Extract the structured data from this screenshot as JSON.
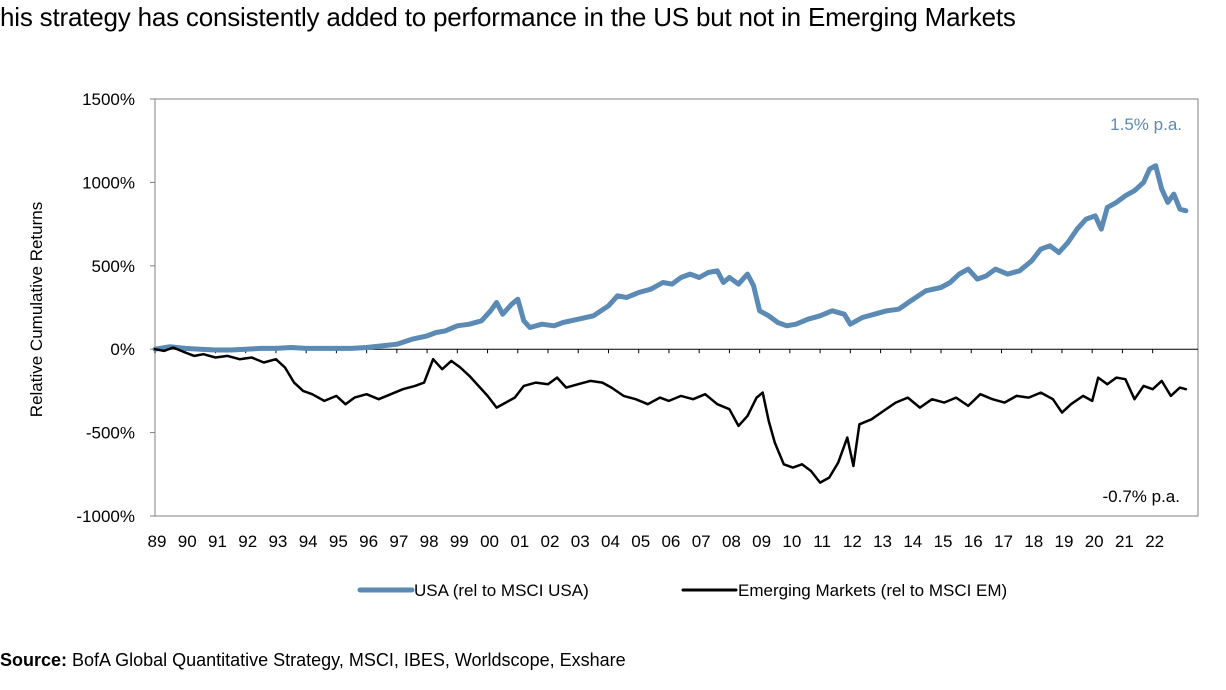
{
  "page": {
    "title": "his strategy has consistently added to performance in the US but not in Emerging Markets",
    "source_label": "Source:",
    "source_text": " BofA Global Quantitative Strategy, MSCI, IBES, Worldscope, Exshare"
  },
  "chart_data": {
    "type": "line",
    "ylabel": "Relative Cumulative Returns",
    "xlabel": "",
    "ylim": [
      -1000,
      1500
    ],
    "y_ticks": [
      1500,
      1000,
      500,
      0,
      -500,
      -1000
    ],
    "y_tick_labels": [
      "1500%",
      "1000%",
      "500%",
      "0%",
      "-500%",
      "-1000%"
    ],
    "x_tick_labels": [
      "89",
      "90",
      "91",
      "92",
      "93",
      "94",
      "95",
      "96",
      "97",
      "98",
      "99",
      "00",
      "01",
      "02",
      "03",
      "04",
      "05",
      "06",
      "07",
      "08",
      "09",
      "10",
      "11",
      "12",
      "13",
      "14",
      "15",
      "16",
      "17",
      "18",
      "19",
      "20",
      "21",
      "22"
    ],
    "x_range": [
      1989.0,
      2023.5
    ],
    "grid": false,
    "legend_position": "bottom",
    "annotations": [
      {
        "text": "1.5% p.a.",
        "series": "USA (rel to MSCI USA)"
      },
      {
        "text": "-0.7% p.a.",
        "series": "Emerging Markets (rel to MSCI EM)"
      }
    ],
    "series": [
      {
        "name": "USA (rel to MSCI USA)",
        "color": "#5b8ab5",
        "points": [
          [
            1989.0,
            0
          ],
          [
            1989.5,
            15
          ],
          [
            1990.0,
            5
          ],
          [
            1990.5,
            0
          ],
          [
            1991.0,
            -5
          ],
          [
            1991.5,
            -5
          ],
          [
            1992.0,
            0
          ],
          [
            1992.5,
            5
          ],
          [
            1993.0,
            5
          ],
          [
            1993.5,
            10
          ],
          [
            1994.0,
            5
          ],
          [
            1994.5,
            5
          ],
          [
            1995.0,
            5
          ],
          [
            1995.5,
            5
          ],
          [
            1996.0,
            10
          ],
          [
            1996.5,
            20
          ],
          [
            1997.0,
            30
          ],
          [
            1997.5,
            60
          ],
          [
            1998.0,
            80
          ],
          [
            1998.3,
            100
          ],
          [
            1998.6,
            110
          ],
          [
            1999.0,
            140
          ],
          [
            1999.4,
            150
          ],
          [
            1999.8,
            170
          ],
          [
            2000.1,
            230
          ],
          [
            2000.3,
            280
          ],
          [
            2000.5,
            210
          ],
          [
            2000.8,
            270
          ],
          [
            2001.0,
            300
          ],
          [
            2001.2,
            170
          ],
          [
            2001.4,
            130
          ],
          [
            2001.8,
            150
          ],
          [
            2002.2,
            140
          ],
          [
            2002.5,
            160
          ],
          [
            2003.0,
            180
          ],
          [
            2003.5,
            200
          ],
          [
            2004.0,
            260
          ],
          [
            2004.3,
            320
          ],
          [
            2004.6,
            310
          ],
          [
            2005.0,
            340
          ],
          [
            2005.4,
            360
          ],
          [
            2005.8,
            400
          ],
          [
            2006.1,
            390
          ],
          [
            2006.4,
            430
          ],
          [
            2006.7,
            450
          ],
          [
            2007.0,
            430
          ],
          [
            2007.3,
            460
          ],
          [
            2007.6,
            470
          ],
          [
            2007.8,
            400
          ],
          [
            2008.0,
            430
          ],
          [
            2008.3,
            390
          ],
          [
            2008.6,
            450
          ],
          [
            2008.8,
            380
          ],
          [
            2009.0,
            230
          ],
          [
            2009.3,
            200
          ],
          [
            2009.6,
            160
          ],
          [
            2009.9,
            140
          ],
          [
            2010.2,
            150
          ],
          [
            2010.6,
            180
          ],
          [
            2011.0,
            200
          ],
          [
            2011.4,
            230
          ],
          [
            2011.8,
            210
          ],
          [
            2012.0,
            150
          ],
          [
            2012.4,
            190
          ],
          [
            2012.8,
            210
          ],
          [
            2013.2,
            230
          ],
          [
            2013.6,
            240
          ],
          [
            2014.0,
            290
          ],
          [
            2014.5,
            350
          ],
          [
            2015.0,
            370
          ],
          [
            2015.3,
            400
          ],
          [
            2015.6,
            450
          ],
          [
            2015.9,
            480
          ],
          [
            2016.2,
            420
          ],
          [
            2016.5,
            440
          ],
          [
            2016.8,
            480
          ],
          [
            2017.2,
            450
          ],
          [
            2017.6,
            470
          ],
          [
            2018.0,
            530
          ],
          [
            2018.3,
            600
          ],
          [
            2018.6,
            620
          ],
          [
            2018.9,
            580
          ],
          [
            2019.2,
            640
          ],
          [
            2019.5,
            720
          ],
          [
            2019.8,
            780
          ],
          [
            2020.1,
            800
          ],
          [
            2020.3,
            720
          ],
          [
            2020.5,
            850
          ],
          [
            2020.8,
            880
          ],
          [
            2021.1,
            920
          ],
          [
            2021.4,
            950
          ],
          [
            2021.7,
            1000
          ],
          [
            2021.9,
            1080
          ],
          [
            2022.1,
            1100
          ],
          [
            2022.3,
            960
          ],
          [
            2022.5,
            880
          ],
          [
            2022.7,
            930
          ],
          [
            2022.9,
            840
          ],
          [
            2023.1,
            830
          ]
        ]
      },
      {
        "name": "Emerging Markets (rel to MSCI EM)",
        "color": "#000000",
        "points": [
          [
            1989.0,
            0
          ],
          [
            1989.3,
            -10
          ],
          [
            1989.6,
            10
          ],
          [
            1990.0,
            -20
          ],
          [
            1990.3,
            -40
          ],
          [
            1990.6,
            -30
          ],
          [
            1991.0,
            -50
          ],
          [
            1991.4,
            -40
          ],
          [
            1991.8,
            -60
          ],
          [
            1992.2,
            -50
          ],
          [
            1992.6,
            -80
          ],
          [
            1993.0,
            -60
          ],
          [
            1993.3,
            -110
          ],
          [
            1993.6,
            -200
          ],
          [
            1993.9,
            -250
          ],
          [
            1994.2,
            -270
          ],
          [
            1994.6,
            -310
          ],
          [
            1995.0,
            -280
          ],
          [
            1995.3,
            -330
          ],
          [
            1995.6,
            -290
          ],
          [
            1996.0,
            -270
          ],
          [
            1996.4,
            -300
          ],
          [
            1996.8,
            -270
          ],
          [
            1997.2,
            -240
          ],
          [
            1997.6,
            -220
          ],
          [
            1997.9,
            -200
          ],
          [
            1998.2,
            -60
          ],
          [
            1998.5,
            -120
          ],
          [
            1998.8,
            -70
          ],
          [
            1999.1,
            -110
          ],
          [
            1999.4,
            -160
          ],
          [
            1999.7,
            -220
          ],
          [
            2000.0,
            -280
          ],
          [
            2000.3,
            -350
          ],
          [
            2000.6,
            -320
          ],
          [
            2000.9,
            -290
          ],
          [
            2001.2,
            -220
          ],
          [
            2001.6,
            -200
          ],
          [
            2002.0,
            -210
          ],
          [
            2002.3,
            -170
          ],
          [
            2002.6,
            -230
          ],
          [
            2003.0,
            -210
          ],
          [
            2003.4,
            -190
          ],
          [
            2003.8,
            -200
          ],
          [
            2004.1,
            -230
          ],
          [
            2004.5,
            -280
          ],
          [
            2004.9,
            -300
          ],
          [
            2005.3,
            -330
          ],
          [
            2005.7,
            -290
          ],
          [
            2006.0,
            -310
          ],
          [
            2006.4,
            -280
          ],
          [
            2006.8,
            -300
          ],
          [
            2007.2,
            -270
          ],
          [
            2007.6,
            -330
          ],
          [
            2008.0,
            -360
          ],
          [
            2008.3,
            -460
          ],
          [
            2008.6,
            -400
          ],
          [
            2008.9,
            -290
          ],
          [
            2009.1,
            -260
          ],
          [
            2009.3,
            -430
          ],
          [
            2009.5,
            -560
          ],
          [
            2009.8,
            -690
          ],
          [
            2010.1,
            -710
          ],
          [
            2010.4,
            -690
          ],
          [
            2010.7,
            -730
          ],
          [
            2011.0,
            -800
          ],
          [
            2011.3,
            -770
          ],
          [
            2011.6,
            -680
          ],
          [
            2011.9,
            -530
          ],
          [
            2012.1,
            -700
          ],
          [
            2012.3,
            -450
          ],
          [
            2012.7,
            -420
          ],
          [
            2013.1,
            -370
          ],
          [
            2013.5,
            -320
          ],
          [
            2013.9,
            -290
          ],
          [
            2014.3,
            -350
          ],
          [
            2014.7,
            -300
          ],
          [
            2015.1,
            -320
          ],
          [
            2015.5,
            -290
          ],
          [
            2015.9,
            -340
          ],
          [
            2016.3,
            -270
          ],
          [
            2016.7,
            -300
          ],
          [
            2017.1,
            -320
          ],
          [
            2017.5,
            -280
          ],
          [
            2017.9,
            -290
          ],
          [
            2018.3,
            -260
          ],
          [
            2018.7,
            -300
          ],
          [
            2019.0,
            -380
          ],
          [
            2019.3,
            -330
          ],
          [
            2019.7,
            -280
          ],
          [
            2020.0,
            -310
          ],
          [
            2020.2,
            -170
          ],
          [
            2020.5,
            -210
          ],
          [
            2020.8,
            -170
          ],
          [
            2021.1,
            -180
          ],
          [
            2021.4,
            -300
          ],
          [
            2021.7,
            -220
          ],
          [
            2022.0,
            -240
          ],
          [
            2022.3,
            -190
          ],
          [
            2022.6,
            -280
          ],
          [
            2022.9,
            -230
          ],
          [
            2023.1,
            -240
          ]
        ]
      }
    ]
  }
}
